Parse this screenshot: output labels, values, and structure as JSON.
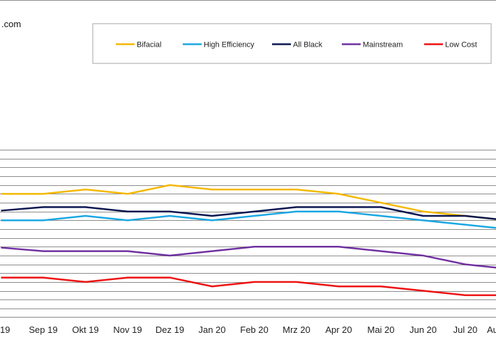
{
  "source_text": ".com",
  "chart_data": {
    "type": "line",
    "categories": [
      "19",
      "Sep 19",
      "Okt 19",
      "Nov 19",
      "Dez 19",
      "Jan 20",
      "Feb 20",
      "Mrz 20",
      "Apr 20",
      "Mai 20",
      "Jun 20",
      "Jul 20",
      "Au"
    ],
    "ylim": [
      0,
      20
    ],
    "y_gridlines": 20,
    "grid": true,
    "legend_position": "top",
    "series": [
      {
        "name": "Bifacial",
        "color": "#F5B800",
        "values": [
          14,
          14,
          14.5,
          14,
          15,
          14.5,
          14.5,
          14.5,
          14,
          13,
          12,
          11.5,
          11
        ]
      },
      {
        "name": "High Efficiency",
        "color": "#1AA7E3",
        "values": [
          11,
          11,
          11.5,
          11,
          11.5,
          11,
          11.5,
          12,
          12,
          11.5,
          11,
          10.5,
          10
        ]
      },
      {
        "name": "All Black",
        "color": "#0A1650",
        "values": [
          12.1,
          12.5,
          12.5,
          12,
          12,
          11.5,
          12,
          12.5,
          12.5,
          12.5,
          11.5,
          11.5,
          11
        ]
      },
      {
        "name": "Mainstream",
        "color": "#7030A0",
        "values": [
          7.9,
          7.5,
          7.5,
          7.5,
          7,
          7.5,
          8,
          8,
          8,
          7.5,
          7,
          6,
          5.5
        ]
      },
      {
        "name": "Low Cost",
        "color": "#EE1111",
        "values": [
          4.5,
          4.5,
          4,
          4.5,
          4.5,
          3.5,
          4,
          4,
          3.5,
          3.5,
          3,
          2.5,
          2.5
        ]
      }
    ]
  }
}
